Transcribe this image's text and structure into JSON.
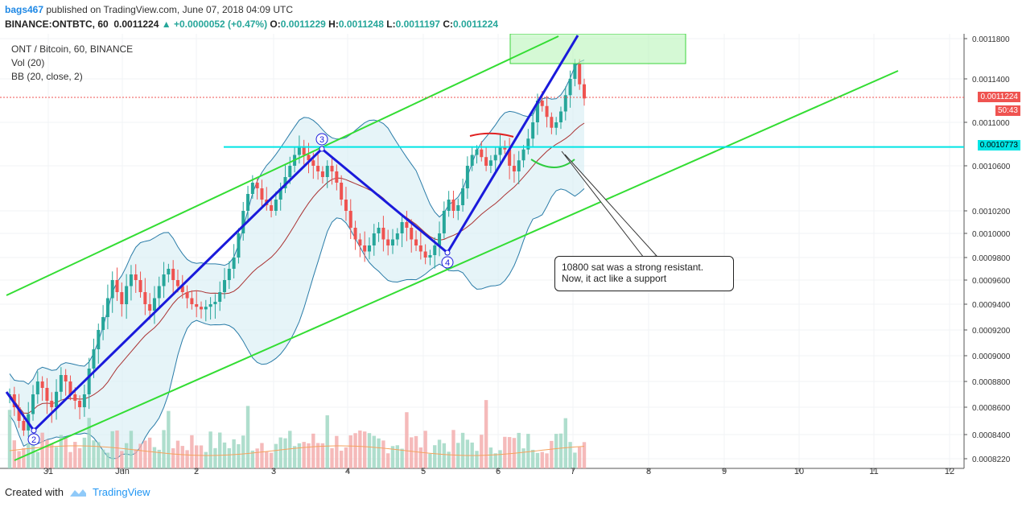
{
  "header": {
    "user": "bags467",
    "published": "published on TradingView.com, June 07, 2018 04:09 UTC",
    "symbol": "BINANCE:ONTBTC, 60",
    "last": "0.0011224",
    "change": "+0.0000052 (+0.47%)",
    "o_label": "O:",
    "o": "0.0011229",
    "h_label": "H:",
    "h": "0.0011248",
    "l_label": "L:",
    "l": "0.0011197",
    "c_label": "C:",
    "c": "0.0011224"
  },
  "legend": {
    "title": "ONT / Bitcoin, 60, BINANCE",
    "vol": "Vol (20)",
    "bb": "BB (20, close, 2)"
  },
  "annotation": {
    "line1": "10800 sat was a strong resistant.",
    "line2": "Now, it act like a support"
  },
  "price_labels": {
    "current": "0.0011224",
    "countdown": "50:43",
    "level": "0.0010773"
  },
  "footer": {
    "created_with": "Created with",
    "brand": "TradingView"
  },
  "colors": {
    "up": "#26a69a",
    "down": "#ef5350",
    "channel": "#33dd33",
    "pattern": "#1a1adb",
    "level": "#00e5e5",
    "bb_band": "#2a7ca8",
    "bb_fill": "#d6ecf3",
    "ma": "#a33",
    "target_zone": "#b9f5b9"
  },
  "chart_data": {
    "type": "candlestick",
    "y_ticks": [
      "0.0011800",
      "0.0011400",
      "0.0011000",
      "0.0010600",
      "0.0010200",
      "0.0010000",
      "0.0009800",
      "0.0009600",
      "0.0009400",
      "0.0009200",
      "0.0009000",
      "0.0008800",
      "0.0008600",
      "0.0008400",
      "0.0008220"
    ],
    "x_ticks": [
      "31",
      "Jun",
      "2",
      "3",
      "4",
      "5",
      "6",
      "7",
      "8",
      "9",
      "10",
      "11",
      "12"
    ],
    "resistance_level": 0.0010773,
    "pattern_points": [
      {
        "label": "2",
        "price": 0.000843
      },
      {
        "label": "3",
        "price": 0.001078
      },
      {
        "label": "4",
        "price": 0.000982
      }
    ],
    "close_path": [
      0.00087,
      0.00086,
      0.00085,
      0.000843,
      0.000855,
      0.00087,
      0.00088,
      0.000875,
      0.000865,
      0.00086,
      0.000872,
      0.000885,
      0.00088,
      0.00087,
      0.000865,
      0.00086,
      0.00087,
      0.00089,
      0.000905,
      0.00092,
      0.00093,
      0.000945,
      0.00096,
      0.00095,
      0.00094,
      0.000955,
      0.000965,
      0.00096,
      0.00095,
      0.00094,
      0.000935,
      0.000945,
      0.000955,
      0.000965,
      0.00097,
      0.00096,
      0.000955,
      0.00095,
      0.000945,
      0.00094,
      0.000938,
      0.000936,
      0.000938,
      0.00094,
      0.000942,
      0.00095,
      0.00096,
      0.00097,
      0.00098,
      0.001,
      0.00102,
      0.001035,
      0.001045,
      0.00104,
      0.00103,
      0.001025,
      0.00102,
      0.00103,
      0.00104,
      0.00105,
      0.00106,
      0.00107,
      0.001078,
      0.00107,
      0.001065,
      0.00106,
      0.001055,
      0.00105,
      0.00106,
      0.001055,
      0.001045,
      0.00103,
      0.00102,
      0.001005,
      0.000995,
      0.00099,
      0.000985,
      0.00099,
      0.001,
      0.001005,
      0.000995,
      0.00099,
      0.000995,
      0.001,
      0.00101,
      0.001005,
      0.000995,
      0.00099,
      0.000985,
      0.00098,
      0.000982,
      0.00099,
      0.001,
      0.00102,
      0.00103,
      0.00102,
      0.001025,
      0.00104,
      0.00106,
      0.00107,
      0.001075,
      0.001068,
      0.00106,
      0.001065,
      0.00107,
      0.001078,
      0.001075,
      0.00106,
      0.001055,
      0.001065,
      0.001075,
      0.001085,
      0.0011,
      0.00112,
      0.001115,
      0.001105,
      0.001095,
      0.0011,
      0.00111,
      0.001125,
      0.00114,
      0.001155,
      0.001135,
      0.001122
    ]
  }
}
